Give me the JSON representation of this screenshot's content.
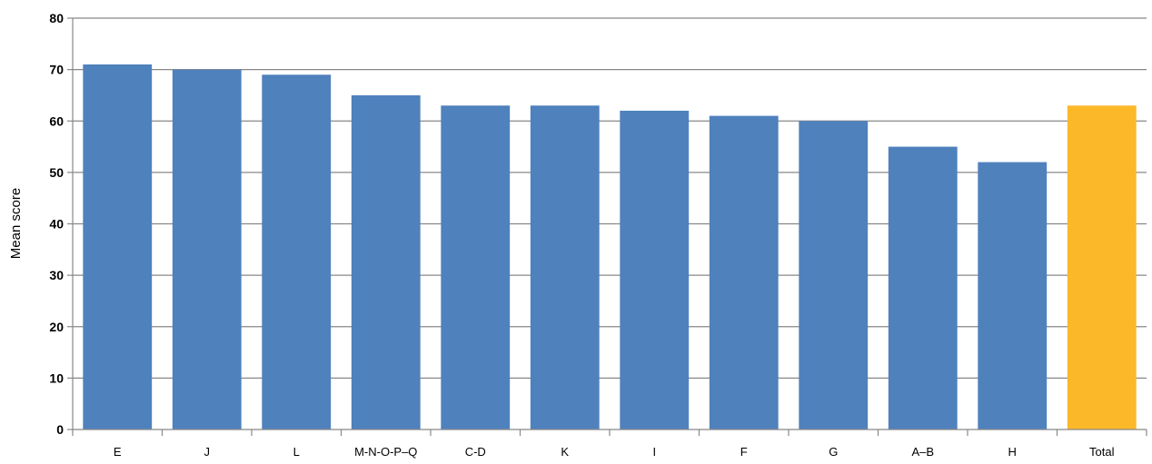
{
  "chart_data": {
    "type": "bar",
    "title": "",
    "xlabel": "",
    "ylabel": "Mean score",
    "ylim": [
      0,
      80
    ],
    "yticks": [
      0,
      10,
      20,
      30,
      40,
      50,
      60,
      70,
      80
    ],
    "grid": true,
    "legend": "none",
    "categories": [
      "E",
      "J",
      "L",
      "M-N-O-P–Q",
      "C-D",
      "K",
      "I",
      "F",
      "G",
      "A–B",
      "H",
      "Total"
    ],
    "values": [
      71,
      70,
      69,
      65,
      63,
      63,
      62,
      61,
      60,
      55,
      52,
      63
    ],
    "colors": {
      "bar": "#4f81bd",
      "highlight_bar": "#fbb829",
      "highlight_category": "Total",
      "grid": "#888888",
      "axis": "#888888"
    }
  }
}
